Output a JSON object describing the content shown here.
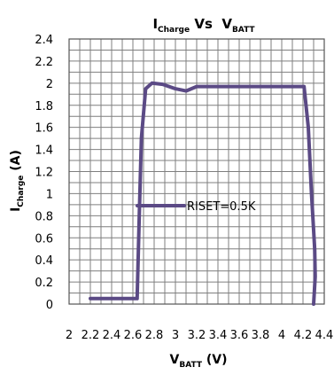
{
  "chart_data": {
    "type": "line",
    "title": {
      "main": "I",
      "main_sub": "Charge",
      "vs": " Vs  ",
      "second": "V",
      "second_sub": "BATT"
    },
    "xlabel": {
      "main": "V",
      "sub": "BATT",
      "unit": " (V)"
    },
    "ylabel": {
      "main": "I",
      "sub": "Charge",
      "unit": " (A)"
    },
    "xlim": [
      2,
      4.4
    ],
    "ylim": [
      0,
      2.4
    ],
    "x_ticks": [
      "2",
      "2.2",
      "2.4",
      "2.6",
      "2.8",
      "3",
      "3.2",
      "3.4",
      "3.6",
      "3.8",
      "4",
      "4.2",
      "4.4"
    ],
    "y_ticks": [
      "0",
      "0.2",
      "0.4",
      "0.6",
      "0.8",
      "1",
      "1.2",
      "1.4",
      "1.6",
      "1.8",
      "2",
      "2.2",
      "2.4"
    ],
    "grid": true,
    "legend_position": "center",
    "colors": {
      "series": "#5b4a85",
      "grid": "#7f7f7f"
    },
    "series": [
      {
        "name": "RISET=0.5K",
        "x": [
          2.2,
          2.64,
          2.66,
          2.68,
          2.72,
          2.78,
          2.88,
          3.0,
          3.1,
          3.2,
          3.4,
          3.6,
          3.8,
          4.0,
          4.1,
          4.21,
          4.25,
          4.28,
          4.31,
          4.315,
          4.3
        ],
        "y": [
          0.05,
          0.05,
          0.8,
          1.5,
          1.95,
          2.0,
          1.99,
          1.95,
          1.93,
          1.97,
          1.97,
          1.97,
          1.97,
          1.97,
          1.97,
          1.97,
          1.6,
          1.0,
          0.5,
          0.25,
          0.0
        ]
      }
    ]
  }
}
